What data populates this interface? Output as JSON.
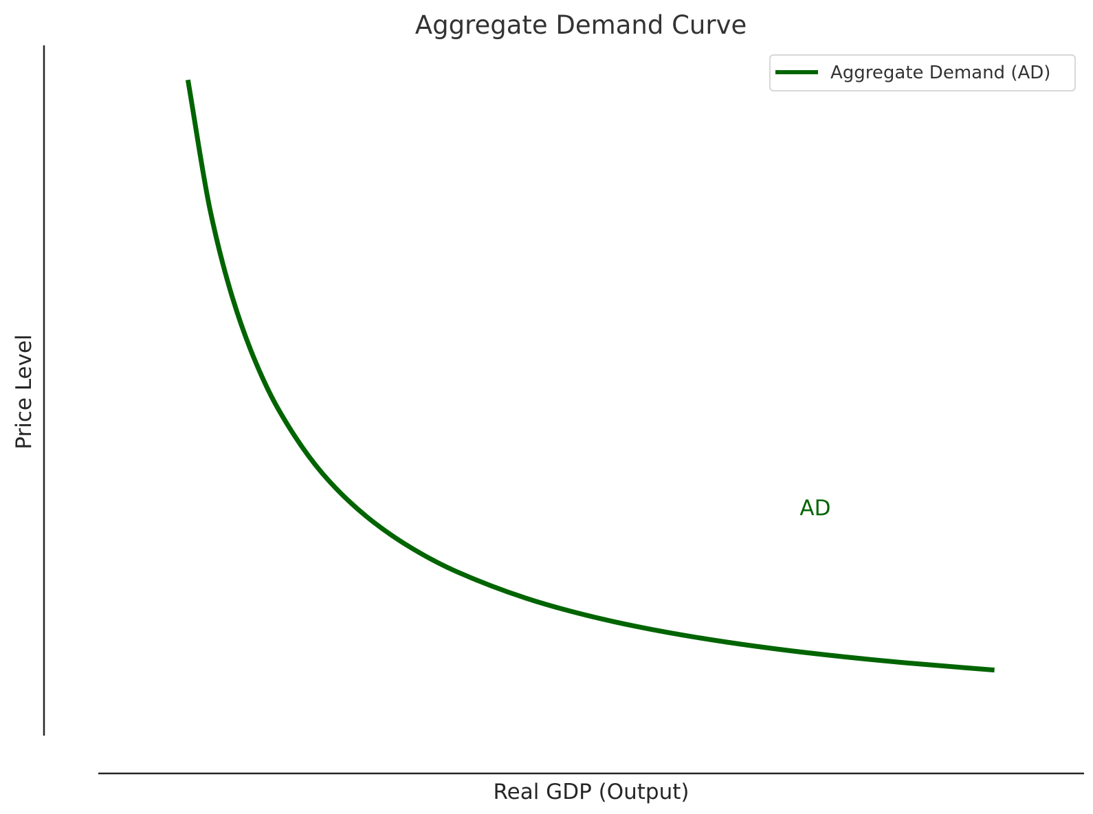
{
  "chart_data": {
    "type": "line",
    "title": "Aggregate Demand Curve",
    "xlabel": "Real GDP (Output)",
    "ylabel": "Price Level",
    "xlim": [
      0,
      11
    ],
    "ylim": [
      0,
      10
    ],
    "grid": false,
    "legend": {
      "position": "top-right",
      "entries": [
        "Aggregate Demand (AD)"
      ]
    },
    "annotations": [
      {
        "text": "AD",
        "x": 8,
        "y": 3.3
      }
    ],
    "series": [
      {
        "name": "Aggregate Demand (AD)",
        "color": "#006400",
        "x": [
          1,
          1.25,
          1.5,
          1.75,
          2,
          2.5,
          3,
          3.5,
          4,
          5,
          6,
          7,
          8,
          9,
          10
        ],
        "y": [
          9.5,
          7.6,
          6.333,
          5.429,
          4.75,
          3.8,
          3.167,
          2.714,
          2.375,
          1.9,
          1.583,
          1.357,
          1.1875,
          1.056,
          0.95
        ]
      }
    ]
  }
}
